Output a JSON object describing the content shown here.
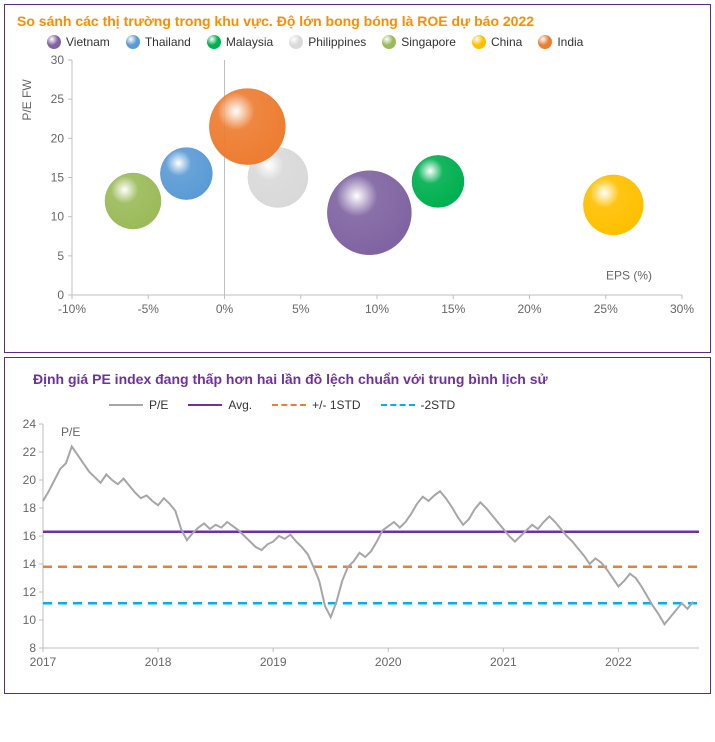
{
  "bubbleChart": {
    "title": "So sánh các thị trường trong khu vực. Độ lớn bong bóng là ROE dự báo 2022",
    "type": "bubble",
    "xlabel": "EPS (%)",
    "ylabel": "P/E FW",
    "xlim": [
      -10,
      30
    ],
    "ylim": [
      0,
      30
    ],
    "xtick_step": 5,
    "ytick_step": 5,
    "xtick_format": "percent",
    "background": "#ffffff",
    "grid_color": "none",
    "axis_color": "#bfbfbf",
    "tick_fontsize": 12,
    "label_fontsize": 12,
    "series": [
      {
        "name": "Vietnam",
        "color": "#8064a2",
        "x": 9.5,
        "y": 10.5,
        "r": 42
      },
      {
        "name": "Thailand",
        "color": "#5b9bd5",
        "x": -2.5,
        "y": 15.5,
        "r": 26
      },
      {
        "name": "Malaysia",
        "color": "#00b050",
        "x": 14,
        "y": 14.5,
        "r": 26
      },
      {
        "name": "Philippines",
        "color": "#d9d9d9",
        "x": 3.5,
        "y": 15,
        "r": 30
      },
      {
        "name": "Singapore",
        "color": "#9bbb59",
        "x": -6,
        "y": 12,
        "r": 28
      },
      {
        "name": "China",
        "color": "#ffc000",
        "x": 25.5,
        "y": 11.5,
        "r": 30
      },
      {
        "name": "India",
        "color": "#ed7d31",
        "x": 1.5,
        "y": 21.5,
        "r": 38
      }
    ]
  },
  "lineChart": {
    "title": "Định giá PE index đang thấp hơn hai lần đồ lệch chuẩn với trung bình lịch sử",
    "type": "line",
    "ylabel": "P/E",
    "ylim": [
      8,
      24
    ],
    "ytick_step": 2,
    "xlim": [
      2017,
      2022.7
    ],
    "xticks": [
      2017,
      2018,
      2019,
      2020,
      2021,
      2022
    ],
    "background": "#ffffff",
    "axis_color": "#bfbfbf",
    "tick_fontsize": 12,
    "legend": [
      {
        "name": "P/E",
        "color": "#a6a6a6",
        "dash": "solid",
        "width": 2
      },
      {
        "name": "Avg.",
        "color": "#7030a0",
        "dash": "solid",
        "width": 2.5
      },
      {
        "name": "+/- 1STD",
        "color": "#ed7d31",
        "dash": "dashed",
        "width": 2.5
      },
      {
        "name": "-2STD",
        "color": "#00b0f0",
        "dash": "dashed",
        "width": 2.5
      }
    ],
    "avg": 16.3,
    "std1": 13.8,
    "std2": 11.2,
    "pe_series": [
      [
        2017.0,
        18.5
      ],
      [
        2017.05,
        19.2
      ],
      [
        2017.1,
        20.0
      ],
      [
        2017.15,
        20.8
      ],
      [
        2017.2,
        21.2
      ],
      [
        2017.25,
        22.4
      ],
      [
        2017.3,
        21.8
      ],
      [
        2017.35,
        21.2
      ],
      [
        2017.4,
        20.6
      ],
      [
        2017.45,
        20.2
      ],
      [
        2017.5,
        19.8
      ],
      [
        2017.55,
        20.4
      ],
      [
        2017.6,
        20.0
      ],
      [
        2017.65,
        19.7
      ],
      [
        2017.7,
        20.1
      ],
      [
        2017.75,
        19.6
      ],
      [
        2017.8,
        19.1
      ],
      [
        2017.85,
        18.7
      ],
      [
        2017.9,
        18.9
      ],
      [
        2017.95,
        18.5
      ],
      [
        2018.0,
        18.2
      ],
      [
        2018.05,
        18.7
      ],
      [
        2018.1,
        18.3
      ],
      [
        2018.15,
        17.8
      ],
      [
        2018.2,
        16.5
      ],
      [
        2018.25,
        15.7
      ],
      [
        2018.3,
        16.2
      ],
      [
        2018.35,
        16.6
      ],
      [
        2018.4,
        16.9
      ],
      [
        2018.45,
        16.5
      ],
      [
        2018.5,
        16.8
      ],
      [
        2018.55,
        16.6
      ],
      [
        2018.6,
        17.0
      ],
      [
        2018.65,
        16.7
      ],
      [
        2018.7,
        16.4
      ],
      [
        2018.75,
        16.0
      ],
      [
        2018.8,
        15.6
      ],
      [
        2018.85,
        15.2
      ],
      [
        2018.9,
        15.0
      ],
      [
        2018.95,
        15.4
      ],
      [
        2019.0,
        15.6
      ],
      [
        2019.05,
        16.0
      ],
      [
        2019.1,
        15.8
      ],
      [
        2019.15,
        16.1
      ],
      [
        2019.2,
        15.6
      ],
      [
        2019.25,
        15.2
      ],
      [
        2019.3,
        14.7
      ],
      [
        2019.35,
        13.8
      ],
      [
        2019.4,
        12.8
      ],
      [
        2019.45,
        11.0
      ],
      [
        2019.5,
        10.2
      ],
      [
        2019.55,
        11.3
      ],
      [
        2019.6,
        12.8
      ],
      [
        2019.65,
        13.8
      ],
      [
        2019.7,
        14.2
      ],
      [
        2019.75,
        14.8
      ],
      [
        2019.8,
        14.5
      ],
      [
        2019.85,
        14.9
      ],
      [
        2019.9,
        15.6
      ],
      [
        2019.95,
        16.4
      ],
      [
        2020.0,
        16.7
      ],
      [
        2020.05,
        17.0
      ],
      [
        2020.1,
        16.6
      ],
      [
        2020.15,
        17.0
      ],
      [
        2020.2,
        17.6
      ],
      [
        2020.25,
        18.3
      ],
      [
        2020.3,
        18.8
      ],
      [
        2020.35,
        18.5
      ],
      [
        2020.4,
        18.9
      ],
      [
        2020.45,
        19.2
      ],
      [
        2020.5,
        18.7
      ],
      [
        2020.55,
        18.1
      ],
      [
        2020.6,
        17.4
      ],
      [
        2020.65,
        16.8
      ],
      [
        2020.7,
        17.2
      ],
      [
        2020.75,
        17.9
      ],
      [
        2020.8,
        18.4
      ],
      [
        2020.85,
        18.0
      ],
      [
        2020.9,
        17.5
      ],
      [
        2020.95,
        17.0
      ],
      [
        2021.0,
        16.5
      ],
      [
        2021.05,
        16.0
      ],
      [
        2021.1,
        15.6
      ],
      [
        2021.15,
        16.0
      ],
      [
        2021.2,
        16.4
      ],
      [
        2021.25,
        16.8
      ],
      [
        2021.3,
        16.5
      ],
      [
        2021.35,
        17.0
      ],
      [
        2021.4,
        17.4
      ],
      [
        2021.45,
        17.0
      ],
      [
        2021.5,
        16.5
      ],
      [
        2021.55,
        16.0
      ],
      [
        2021.6,
        15.6
      ],
      [
        2021.65,
        15.1
      ],
      [
        2021.7,
        14.6
      ],
      [
        2021.75,
        14.0
      ],
      [
        2021.8,
        14.4
      ],
      [
        2021.85,
        14.1
      ],
      [
        2021.9,
        13.6
      ],
      [
        2021.95,
        13.0
      ],
      [
        2022.0,
        12.4
      ],
      [
        2022.05,
        12.8
      ],
      [
        2022.1,
        13.3
      ],
      [
        2022.15,
        13.0
      ],
      [
        2022.2,
        12.4
      ],
      [
        2022.25,
        11.7
      ],
      [
        2022.3,
        11.0
      ],
      [
        2022.35,
        10.4
      ],
      [
        2022.4,
        9.7
      ],
      [
        2022.45,
        10.2
      ],
      [
        2022.5,
        10.7
      ],
      [
        2022.55,
        11.2
      ],
      [
        2022.6,
        10.8
      ],
      [
        2022.65,
        11.3
      ]
    ]
  }
}
